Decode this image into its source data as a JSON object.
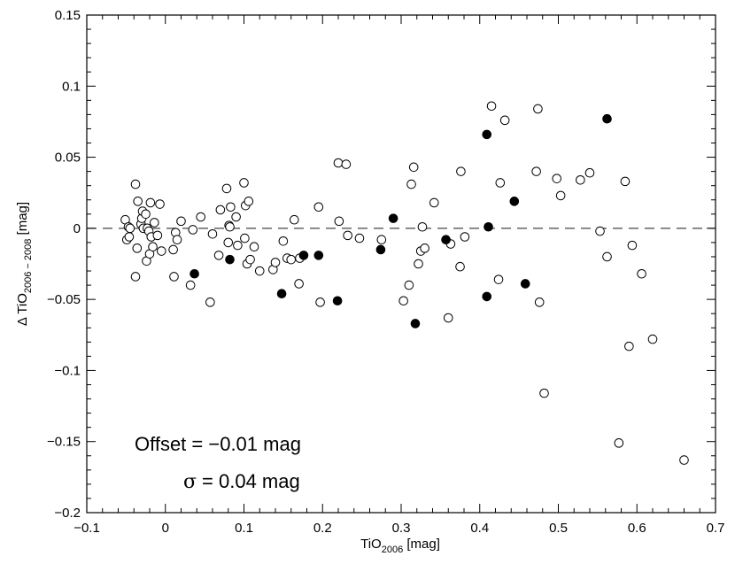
{
  "chart_data": {
    "type": "scatter",
    "title": "",
    "xlabel": {
      "main": "TiO",
      "sub": "2006",
      "unit": " [mag]"
    },
    "ylabel": {
      "prefix": "Δ TiO",
      "sub": "2006 − 2008",
      "unit": " [mag]"
    },
    "xlim": [
      -0.1,
      0.7
    ],
    "ylim": [
      -0.2,
      0.15
    ],
    "xticks": [
      -0.1,
      0.0,
      0.1,
      0.2,
      0.3,
      0.4,
      0.5,
      0.6,
      0.7
    ],
    "xtick_labels": [
      "−0.1",
      "0",
      "0.1",
      "0.2",
      "0.3",
      "0.4",
      "0.5",
      "0.6",
      "0.7"
    ],
    "yticks": [
      -0.2,
      -0.15,
      -0.1,
      -0.05,
      0.0,
      0.05,
      0.1,
      0.15
    ],
    "ytick_labels": [
      "−0.2",
      "−0.15",
      "−0.1",
      "−0.05",
      "0",
      "0.05",
      "0.1",
      "0.15"
    ],
    "reference_line": {
      "y": 0,
      "style": "dashed"
    },
    "annotations": {
      "offset": "Offset = −0.01 mag",
      "sigma_symbol": "σ",
      "sigma_value": "=  0.04 mag"
    },
    "series": [
      {
        "name": "open",
        "marker": "open-circle",
        "points": [
          [
            -0.051,
            0.006
          ],
          [
            -0.049,
            -0.008
          ],
          [
            -0.047,
            0.001
          ],
          [
            -0.046,
            -0.006
          ],
          [
            -0.045,
            0.0
          ],
          [
            -0.038,
            0.031
          ],
          [
            -0.038,
            -0.034
          ],
          [
            -0.036,
            -0.014
          ],
          [
            -0.035,
            0.019
          ],
          [
            -0.031,
            0.003
          ],
          [
            -0.03,
            0.007
          ],
          [
            -0.029,
            0.012
          ],
          [
            -0.028,
            0.0
          ],
          [
            -0.025,
            0.01
          ],
          [
            -0.024,
            -0.023
          ],
          [
            -0.023,
            0.0
          ],
          [
            -0.021,
            -0.002
          ],
          [
            -0.02,
            -0.018
          ],
          [
            -0.019,
            0.018
          ],
          [
            -0.018,
            -0.006
          ],
          [
            -0.016,
            -0.013
          ],
          [
            -0.014,
            0.004
          ],
          [
            -0.01,
            -0.005
          ],
          [
            -0.007,
            0.017
          ],
          [
            -0.005,
            -0.016
          ],
          [
            0.01,
            -0.015
          ],
          [
            0.011,
            -0.034
          ],
          [
            0.013,
            -0.003
          ],
          [
            0.015,
            -0.008
          ],
          [
            0.02,
            0.005
          ],
          [
            0.032,
            -0.04
          ],
          [
            0.035,
            -0.001
          ],
          [
            0.045,
            0.008
          ],
          [
            0.057,
            -0.052
          ],
          [
            0.06,
            -0.004
          ],
          [
            0.068,
            -0.019
          ],
          [
            0.07,
            0.013
          ],
          [
            0.078,
            0.028
          ],
          [
            0.08,
            -0.01
          ],
          [
            0.081,
            0.002
          ],
          [
            0.082,
            0.001
          ],
          [
            0.083,
            0.015
          ],
          [
            0.09,
            0.008
          ],
          [
            0.092,
            -0.012
          ],
          [
            0.1,
            0.032
          ],
          [
            0.101,
            -0.007
          ],
          [
            0.102,
            0.016
          ],
          [
            0.104,
            -0.025
          ],
          [
            0.106,
            0.019
          ],
          [
            0.108,
            -0.022
          ],
          [
            0.113,
            -0.013
          ],
          [
            0.12,
            -0.03
          ],
          [
            0.137,
            -0.029
          ],
          [
            0.14,
            -0.024
          ],
          [
            0.15,
            -0.009
          ],
          [
            0.155,
            -0.021
          ],
          [
            0.16,
            -0.022
          ],
          [
            0.164,
            0.006
          ],
          [
            0.17,
            -0.039
          ],
          [
            0.171,
            -0.021
          ],
          [
            0.195,
            0.015
          ],
          [
            0.197,
            -0.052
          ],
          [
            0.22,
            0.046
          ],
          [
            0.221,
            0.005
          ],
          [
            0.23,
            0.045
          ],
          [
            0.232,
            -0.005
          ],
          [
            0.247,
            -0.007
          ],
          [
            0.275,
            -0.008
          ],
          [
            0.303,
            -0.051
          ],
          [
            0.31,
            -0.04
          ],
          [
            0.313,
            0.031
          ],
          [
            0.316,
            0.043
          ],
          [
            0.322,
            -0.025
          ],
          [
            0.325,
            -0.016
          ],
          [
            0.327,
            0.001
          ],
          [
            0.33,
            -0.014
          ],
          [
            0.342,
            0.018
          ],
          [
            0.36,
            -0.063
          ],
          [
            0.363,
            -0.011
          ],
          [
            0.375,
            -0.027
          ],
          [
            0.376,
            0.04
          ],
          [
            0.381,
            -0.006
          ],
          [
            0.415,
            0.086
          ],
          [
            0.424,
            -0.036
          ],
          [
            0.426,
            0.032
          ],
          [
            0.432,
            0.076
          ],
          [
            0.472,
            0.04
          ],
          [
            0.474,
            0.084
          ],
          [
            0.476,
            -0.052
          ],
          [
            0.482,
            -0.116
          ],
          [
            0.498,
            0.035
          ],
          [
            0.503,
            0.023
          ],
          [
            0.528,
            0.034
          ],
          [
            0.54,
            0.039
          ],
          [
            0.553,
            -0.002
          ],
          [
            0.562,
            -0.02
          ],
          [
            0.577,
            -0.151
          ],
          [
            0.585,
            0.033
          ],
          [
            0.59,
            -0.083
          ],
          [
            0.594,
            -0.012
          ],
          [
            0.606,
            -0.032
          ],
          [
            0.62,
            -0.078
          ],
          [
            0.66,
            -0.163
          ]
        ]
      },
      {
        "name": "filled",
        "marker": "filled-circle",
        "points": [
          [
            0.037,
            -0.032
          ],
          [
            0.082,
            -0.022
          ],
          [
            0.148,
            -0.046
          ],
          [
            0.176,
            -0.019
          ],
          [
            0.195,
            -0.019
          ],
          [
            0.219,
            -0.051
          ],
          [
            0.29,
            0.007
          ],
          [
            0.274,
            -0.015
          ],
          [
            0.318,
            -0.067
          ],
          [
            0.357,
            -0.008
          ],
          [
            0.409,
            0.066
          ],
          [
            0.411,
            0.001
          ],
          [
            0.409,
            -0.048
          ],
          [
            0.444,
            0.019
          ],
          [
            0.458,
            -0.039
          ],
          [
            0.562,
            0.077
          ]
        ]
      }
    ]
  }
}
